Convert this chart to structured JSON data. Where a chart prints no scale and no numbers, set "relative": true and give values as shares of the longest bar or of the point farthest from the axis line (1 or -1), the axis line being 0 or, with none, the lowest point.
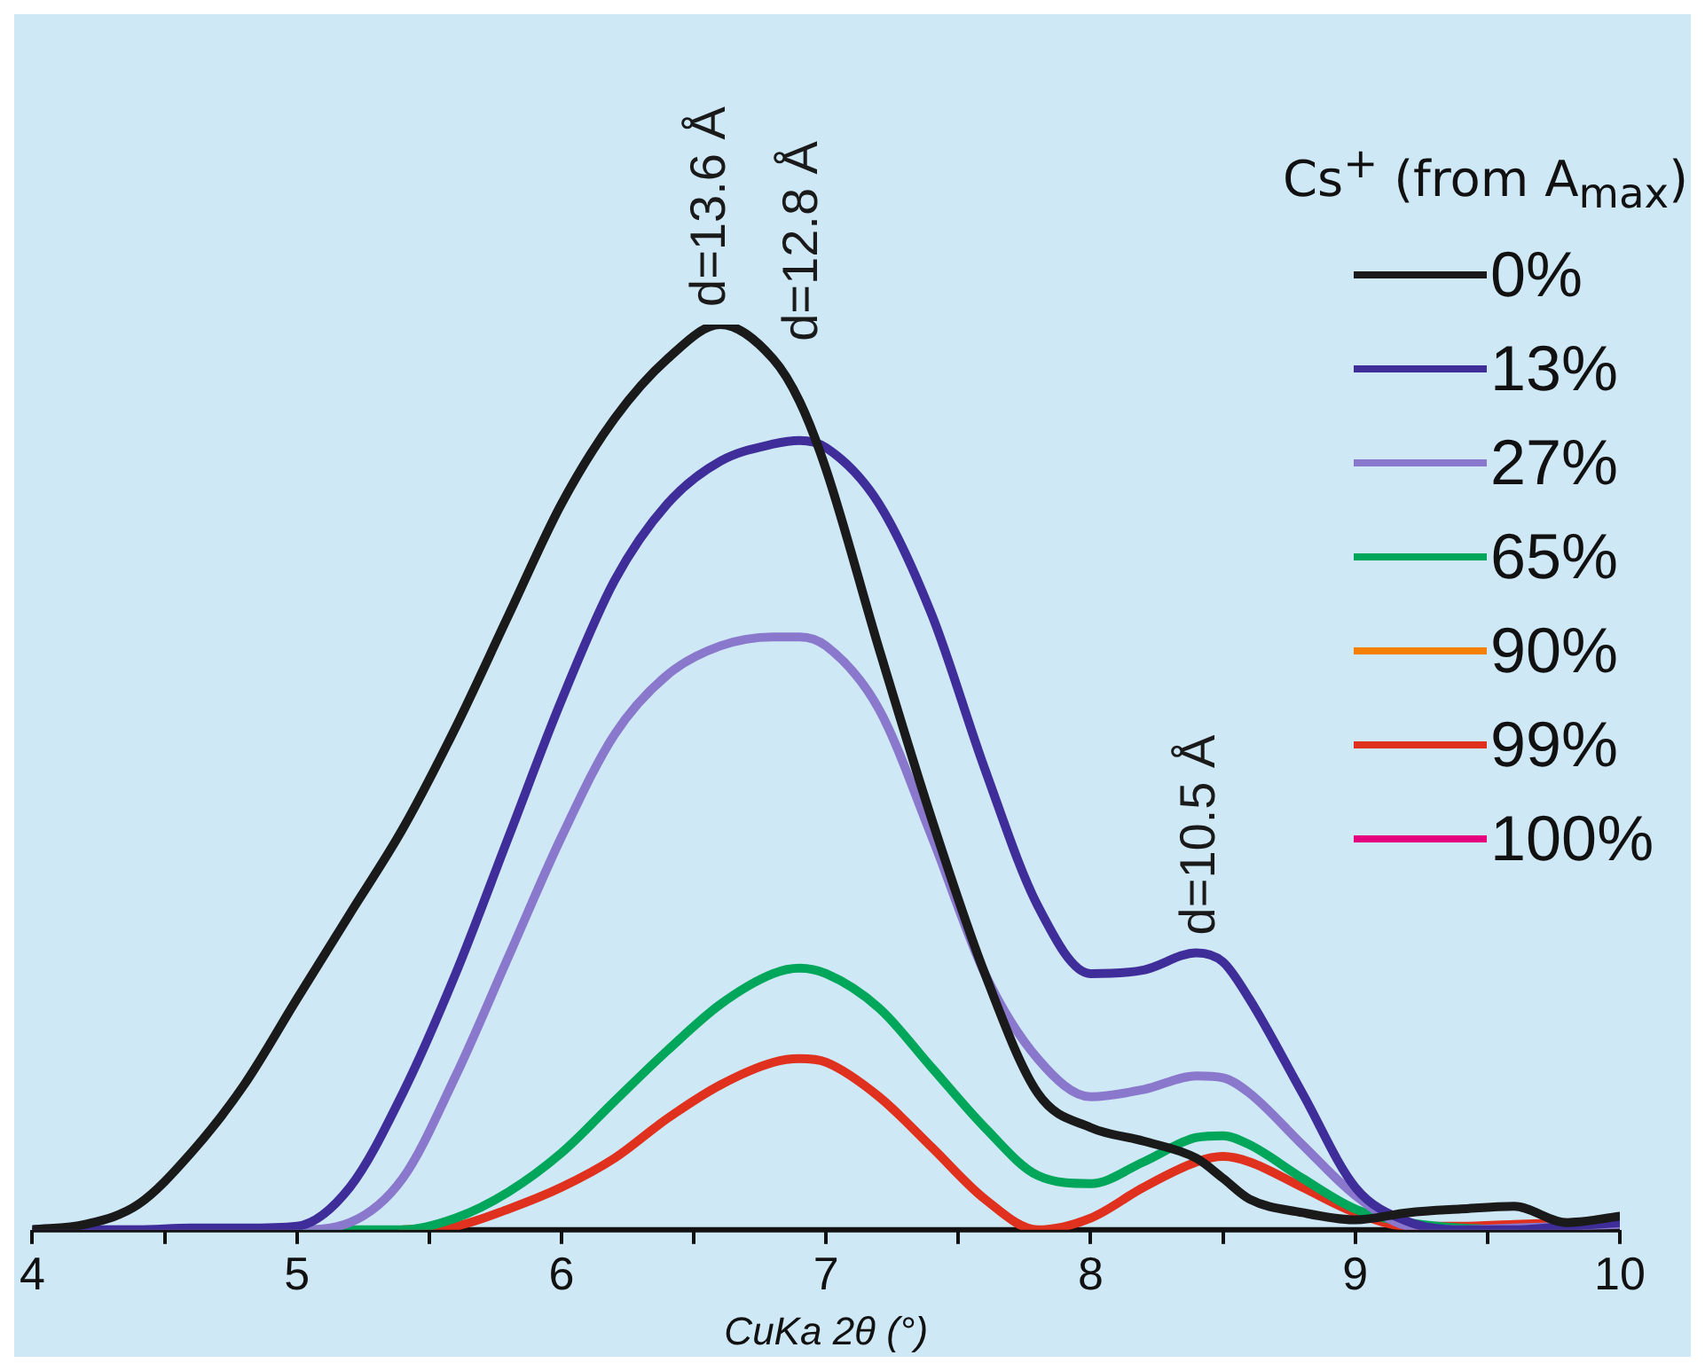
{
  "chart_data": {
    "type": "line",
    "relative": true,
    "xlabel": "CuKa 2θ (°)",
    "legend_title": "Cs$^{+}$ (from A$_{max}$)",
    "legend": "right",
    "marker": "none",
    "line_style": "solid",
    "grid": false,
    "xlim": [
      4,
      10
    ],
    "xticks": [
      4,
      {
        "value": 4.5,
        "label": null
      },
      5,
      {
        "value": 5.5,
        "label": null
      },
      6,
      {
        "value": 6.5,
        "label": null
      },
      7,
      {
        "value": 7.5,
        "label": null
      },
      8,
      {
        "value": 8.5,
        "label": null
      },
      9,
      {
        "value": 9.5,
        "label": null
      },
      10
    ],
    "x": [
      4,
      4.2,
      4.4,
      4.6,
      4.8,
      5,
      5.2,
      5.4,
      5.6,
      5.8,
      6,
      6.2,
      6.4,
      6.6,
      6.8,
      6.9,
      7,
      7.2,
      7.4,
      7.6,
      7.8,
      8,
      8.2,
      8.4,
      8.5,
      8.6,
      8.8,
      9,
      9.2,
      9.4,
      9.6,
      9.8,
      10
    ],
    "series": [
      {
        "name": "0%",
        "color": "#1a1a1a",
        "values": [
          0,
          0.006,
          0.028,
          0.085,
          0.16,
          0.255,
          0.349,
          0.443,
          0.555,
          0.679,
          0.802,
          0.896,
          0.962,
          1,
          0.962,
          0.915,
          0.84,
          0.642,
          0.453,
          0.283,
          0.151,
          0.113,
          0.098,
          0.079,
          0.057,
          0.034,
          0.019,
          0.011,
          0.019,
          0.023,
          0.026,
          0.008,
          0.015
        ]
      },
      {
        "name": "13%",
        "color": "#3f2d9a",
        "values": [
          0,
          0,
          0,
          0.002,
          0.002,
          0.004,
          0.047,
          0.151,
          0.283,
          0.434,
          0.585,
          0.717,
          0.802,
          0.849,
          0.868,
          0.872,
          0.864,
          0.802,
          0.679,
          0.509,
          0.358,
          0.283,
          0.287,
          0.306,
          0.296,
          0.255,
          0.151,
          0.047,
          0.009,
          0,
          0,
          0.004,
          0.008
        ]
      },
      {
        "name": "27%",
        "color": "#8a78cc",
        "values": [
          0,
          0,
          0,
          0,
          0,
          0,
          0.008,
          0.057,
          0.17,
          0.302,
          0.434,
          0.547,
          0.613,
          0.645,
          0.655,
          0.655,
          0.645,
          0.575,
          0.434,
          0.283,
          0.189,
          0.147,
          0.155,
          0.17,
          0.168,
          0.151,
          0.094,
          0.038,
          0.004,
          0,
          0.002,
          0.004,
          0.006
        ]
      },
      {
        "name": "65%",
        "color": "#00a65a",
        "values": [
          null,
          null,
          null,
          null,
          null,
          0,
          0,
          0,
          0.013,
          0.042,
          0.085,
          0.142,
          0.198,
          0.249,
          0.283,
          0.289,
          0.283,
          0.245,
          0.179,
          0.113,
          0.06,
          0.051,
          0.075,
          0.102,
          0.104,
          0.094,
          0.057,
          0.023,
          0.008,
          0.002,
          0,
          null,
          null
        ]
      },
      {
        "name": "90%",
        "color": "#f57f00",
        "values": [
          null,
          null,
          null,
          null,
          null,
          null,
          null,
          null,
          null,
          null,
          null,
          null,
          null,
          null,
          null,
          null,
          null,
          null,
          null,
          null,
          null,
          null,
          null,
          null,
          null,
          null,
          null,
          null,
          null,
          null,
          null,
          null,
          null
        ]
      },
      {
        "name": "99%",
        "color": "#e0301e",
        "values": [
          null,
          null,
          null,
          null,
          null,
          null,
          null,
          0,
          0.004,
          0.023,
          0.047,
          0.079,
          0.123,
          0.16,
          0.185,
          0.189,
          0.185,
          0.147,
          0.091,
          0.034,
          0,
          0.013,
          0.047,
          0.075,
          0.081,
          0.075,
          0.047,
          0.019,
          0.004,
          0.004,
          0.006,
          0.008,
          null
        ]
      },
      {
        "name": "100%",
        "color": "#e6007e",
        "values": [
          null,
          null,
          null,
          null,
          null,
          null,
          null,
          null,
          null,
          null,
          null,
          null,
          null,
          null,
          null,
          null,
          null,
          null,
          null,
          null,
          null,
          null,
          null,
          null,
          null,
          null,
          null,
          null,
          null,
          null,
          null,
          null,
          null
        ]
      }
    ],
    "annotations": [
      {
        "text": "d=13.6 Å",
        "x": 6.55,
        "y": 1
      },
      {
        "text": "d=12.8 Å",
        "x": 6.9,
        "y": 0.872
      },
      {
        "text": "d=10.5 Å",
        "x": 8.4,
        "y": 0.306
      }
    ]
  }
}
